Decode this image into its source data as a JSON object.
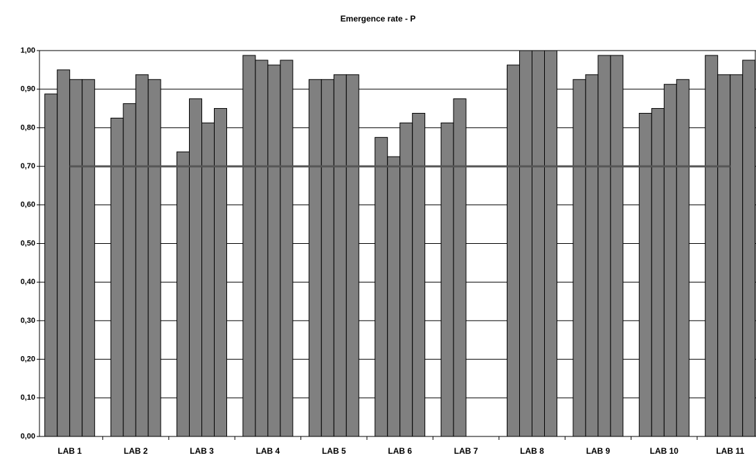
{
  "chart_data": {
    "type": "bar",
    "title": "Emergence rate - P",
    "categories": [
      "LAB 1",
      "LAB 2",
      "LAB 3",
      "LAB 4",
      "LAB 5",
      "LAB 6",
      "LAB 7",
      "LAB 8",
      "LAB 9",
      "LAB 10",
      "LAB 11"
    ],
    "series": [
      {
        "color": "#808080",
        "values": [
          0.8875,
          0.825,
          0.7375,
          0.9875,
          0.925,
          0.775,
          0.8125,
          0.9625,
          0.925,
          0.8375,
          0.9875
        ]
      },
      {
        "color": "#808080",
        "values": [
          0.95,
          0.8625,
          0.875,
          0.975,
          0.925,
          0.725,
          0.875,
          1,
          0.9375,
          0.85,
          0.9375
        ]
      },
      {
        "color": "#808080",
        "values": [
          0.925,
          0.9375,
          0.8125,
          0.9625,
          0.9375,
          0.8125,
          null,
          1,
          0.9875,
          0.9125,
          0.9375
        ]
      },
      {
        "color": "#808080",
        "values": [
          0.925,
          0.925,
          0.85,
          0.975,
          0.9375,
          0.8375,
          null,
          1,
          0.9875,
          0.925,
          0.975
        ]
      }
    ],
    "threshold": {
      "value": 0.7,
      "color": "#555555"
    },
    "ylim": [
      0,
      1
    ],
    "yticks": [
      {
        "value": 0,
        "label": "0,00"
      },
      {
        "value": 0.1,
        "label": "0,10"
      },
      {
        "value": 0.2,
        "label": "0,20"
      },
      {
        "value": 0.3,
        "label": "0,30"
      },
      {
        "value": 0.4,
        "label": "0,40"
      },
      {
        "value": 0.5,
        "label": "0,50"
      },
      {
        "value": 0.6,
        "label": "0,60"
      },
      {
        "value": 0.7,
        "label": "0,70"
      },
      {
        "value": 0.8,
        "label": "0,80"
      },
      {
        "value": 0.9,
        "label": "0,90"
      },
      {
        "value": 1,
        "label": "1,00"
      }
    ],
    "grid": true
  }
}
